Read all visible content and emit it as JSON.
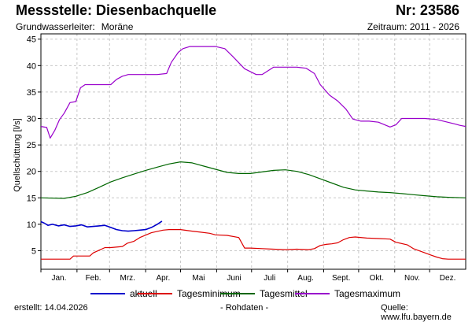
{
  "header": {
    "title": "Messstelle: Diesenbachquelle",
    "nr": "Nr: 23586",
    "sub_label": "Grundwasserleiter:",
    "sub_value": "Moräne",
    "zeitraum": "Zeitraum: 2011 - 2026"
  },
  "footer": {
    "erstellt": "erstellt:  14.04.2026",
    "rohdaten": "- Rohdaten -",
    "quelle_label": "Quelle:",
    "quelle_url": "www.lfu.bayern.de"
  },
  "colors": {
    "aktuell": "#0000cc",
    "minimum": "#dd0000",
    "mittel": "#006600",
    "maximum": "#9900cc",
    "grid": "#c8c8c8"
  },
  "chart_data": {
    "type": "line",
    "ylabel": "Quellschüttung [l/s]",
    "xlabel": "",
    "ylim": [
      1.5,
      46
    ],
    "yticks": [
      5,
      10,
      15,
      20,
      25,
      30,
      35,
      40,
      45
    ],
    "xlim": [
      0,
      365
    ],
    "months": [
      "Jan.",
      "Feb.",
      "Mrz.",
      "Apr.",
      "Mai",
      "Juni",
      "Juli",
      "Aug.",
      "Sept.",
      "Okt.",
      "Nov.",
      "Dez."
    ],
    "grid": true,
    "legend_position": "bottom",
    "series": [
      {
        "name": "aktuell",
        "key": "aktuell",
        "x": [
          0,
          3,
          6,
          10,
          15,
          20,
          25,
          30,
          35,
          40,
          45,
          50,
          55,
          60,
          65,
          70,
          75,
          80,
          85,
          90,
          95,
          100,
          104
        ],
        "y": [
          10.5,
          10.2,
          9.8,
          10.0,
          9.7,
          9.9,
          9.6,
          9.7,
          9.9,
          9.5,
          9.6,
          9.7,
          9.8,
          9.4,
          9.0,
          8.8,
          8.7,
          8.8,
          8.9,
          9.0,
          9.4,
          10.0,
          10.6
        ]
      },
      {
        "name": "Tagesminimum",
        "key": "minimum",
        "x": [
          0,
          25,
          28,
          42,
          45,
          55,
          60,
          70,
          74,
          80,
          85,
          95,
          105,
          110,
          120,
          130,
          145,
          150,
          160,
          170,
          175,
          180,
          190,
          200,
          210,
          220,
          230,
          235,
          240,
          245,
          250,
          255,
          260,
          265,
          270,
          280,
          290,
          300,
          305,
          315,
          320,
          330,
          335,
          340,
          345,
          350,
          365
        ],
        "y": [
          3.4,
          3.4,
          4.0,
          4.0,
          4.6,
          5.6,
          5.6,
          5.8,
          6.4,
          6.8,
          7.5,
          8.4,
          8.9,
          9.0,
          9.0,
          8.7,
          8.3,
          8.0,
          7.9,
          7.5,
          5.5,
          5.5,
          5.4,
          5.3,
          5.2,
          5.3,
          5.2,
          5.4,
          6.0,
          6.2,
          6.3,
          6.5,
          7.1,
          7.5,
          7.6,
          7.4,
          7.3,
          7.2,
          6.6,
          6.1,
          5.4,
          4.6,
          4.2,
          3.8,
          3.5,
          3.4,
          3.4
        ]
      },
      {
        "name": "Tagesmittel",
        "key": "mittel",
        "x": [
          0,
          20,
          30,
          40,
          50,
          60,
          70,
          80,
          90,
          100,
          110,
          120,
          130,
          140,
          150,
          160,
          170,
          180,
          190,
          200,
          210,
          220,
          230,
          240,
          250,
          260,
          270,
          280,
          290,
          300,
          310,
          320,
          330,
          340,
          350,
          365
        ],
        "y": [
          15.0,
          14.9,
          15.3,
          16.0,
          17.0,
          18.0,
          18.8,
          19.5,
          20.2,
          20.8,
          21.4,
          21.8,
          21.6,
          21.0,
          20.4,
          19.8,
          19.6,
          19.6,
          19.9,
          20.2,
          20.3,
          20.0,
          19.4,
          18.6,
          17.8,
          17.0,
          16.5,
          16.3,
          16.1,
          16.0,
          15.8,
          15.6,
          15.4,
          15.2,
          15.1,
          15.0
        ]
      },
      {
        "name": "Tagesmaximum",
        "key": "maximum",
        "x": [
          0,
          5,
          8,
          12,
          16,
          20,
          25,
          30,
          34,
          38,
          44,
          50,
          60,
          65,
          70,
          75,
          80,
          85,
          90,
          100,
          108,
          112,
          118,
          122,
          128,
          140,
          150,
          158,
          165,
          175,
          185,
          190,
          200,
          210,
          220,
          228,
          235,
          240,
          248,
          255,
          262,
          268,
          275,
          282,
          290,
          300,
          305,
          310,
          320,
          330,
          340,
          355,
          360,
          365
        ],
        "y": [
          28.5,
          28.3,
          26.3,
          27.8,
          29.8,
          31.0,
          33.0,
          33.2,
          35.8,
          36.4,
          36.4,
          36.4,
          36.4,
          37.4,
          38.0,
          38.3,
          38.3,
          38.3,
          38.3,
          38.3,
          38.5,
          40.6,
          42.5,
          43.2,
          43.6,
          43.6,
          43.6,
          43.2,
          41.7,
          39.4,
          38.3,
          38.3,
          39.7,
          39.7,
          39.7,
          39.5,
          38.5,
          36.4,
          34.4,
          33.3,
          31.8,
          29.9,
          29.5,
          29.5,
          29.3,
          28.4,
          28.8,
          30.0,
          30.0,
          30.0,
          29.8,
          29.0,
          28.7,
          28.5
        ]
      }
    ]
  }
}
